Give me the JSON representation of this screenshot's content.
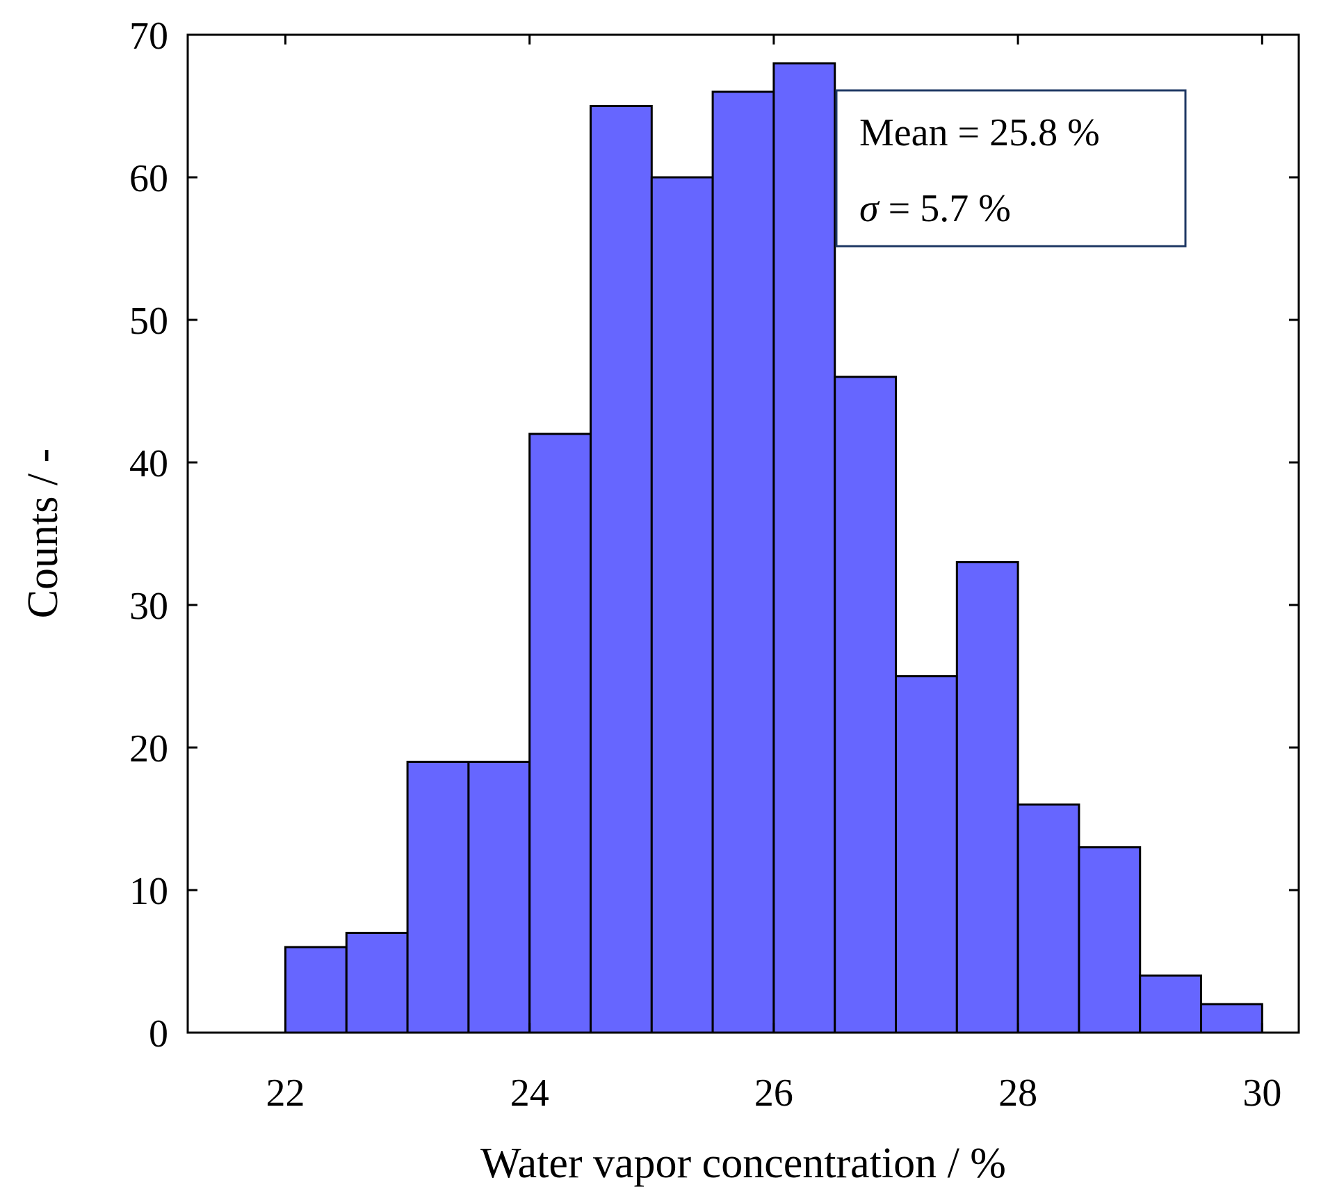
{
  "chart_data": {
    "type": "bar",
    "title": "",
    "xlabel": "Water vapor concentration / %",
    "ylabel": "Counts / -",
    "xlim": [
      21.2,
      30.3
    ],
    "ylim": [
      0,
      70
    ],
    "bin_width": 0.5,
    "bins": [
      {
        "start": 22.0,
        "end": 22.5,
        "count": 6
      },
      {
        "start": 22.5,
        "end": 23.0,
        "count": 7
      },
      {
        "start": 23.0,
        "end": 23.5,
        "count": 19
      },
      {
        "start": 23.5,
        "end": 24.0,
        "count": 19
      },
      {
        "start": 24.0,
        "end": 24.5,
        "count": 42
      },
      {
        "start": 24.5,
        "end": 25.0,
        "count": 65
      },
      {
        "start": 25.0,
        "end": 25.5,
        "count": 60
      },
      {
        "start": 25.5,
        "end": 26.0,
        "count": 66
      },
      {
        "start": 26.0,
        "end": 26.5,
        "count": 68
      },
      {
        "start": 26.5,
        "end": 27.0,
        "count": 46
      },
      {
        "start": 27.0,
        "end": 27.5,
        "count": 25
      },
      {
        "start": 27.5,
        "end": 28.0,
        "count": 33
      },
      {
        "start": 28.0,
        "end": 28.5,
        "count": 16
      },
      {
        "start": 28.5,
        "end": 29.0,
        "count": 13
      },
      {
        "start": 29.0,
        "end": 29.5,
        "count": 4
      },
      {
        "start": 29.5,
        "end": 30.0,
        "count": 2
      }
    ],
    "xticks": [
      22,
      24,
      26,
      28,
      30
    ],
    "yticks": [
      0,
      10,
      20,
      30,
      40,
      50,
      60,
      70
    ],
    "annotations": {
      "mean_label": "Mean = 25.8 %",
      "sigma_symbol": "σ",
      "sigma_rest": " = 5.7 %"
    },
    "grid": false,
    "bar_color": "#6666ff",
    "edge_color": "#000000",
    "annotation_border_color": "#1f3864"
  }
}
